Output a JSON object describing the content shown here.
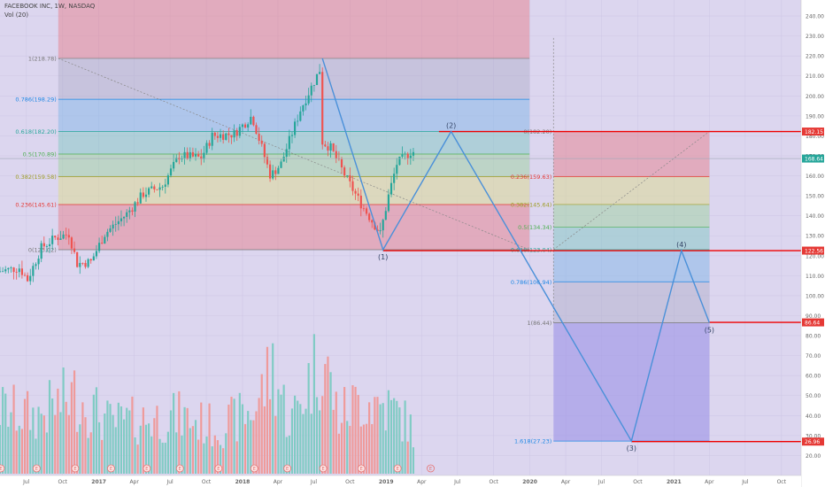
{
  "header": {
    "symbol": "FACEBOOK INC, 1W, NASDAQ",
    "volume": "Vol (20)"
  },
  "chart_data": [
    {
      "type": "candlestick",
      "title": "FACEBOOK INC, 1W, NASDAQ",
      "ylim": [
        10,
        248
      ],
      "y_ticks": [
        20,
        30,
        40,
        50,
        60,
        70,
        80,
        90,
        100,
        110,
        120,
        130,
        140,
        150,
        160,
        170,
        180,
        190,
        200,
        210,
        220,
        230,
        240
      ],
      "y_tick_labels": [
        "20.00",
        "30.00",
        "40.00",
        "50.00",
        "60.00",
        "70.00",
        "80.00",
        "90.00",
        "100.00",
        "110.00",
        "120.00",
        "130.00",
        "140.00",
        "150.00",
        "160.00",
        "170.00",
        "180.00",
        "190.00",
        "200.00",
        "210.00",
        "220.00",
        "230.00",
        "240.00"
      ],
      "x_ticks": [
        {
          "date": "2016-07-01",
          "label": "Jul"
        },
        {
          "date": "2016-10-01",
          "label": "Oct"
        },
        {
          "date": "2017-01-01",
          "label": "2017"
        },
        {
          "date": "2017-04-01",
          "label": "Apr"
        },
        {
          "date": "2017-07-01",
          "label": "Jul"
        },
        {
          "date": "2017-10-01",
          "label": "Oct"
        },
        {
          "date": "2018-01-01",
          "label": "2018"
        },
        {
          "date": "2018-04-01",
          "label": "Apr"
        },
        {
          "date": "2018-07-01",
          "label": "Jul"
        },
        {
          "date": "2018-10-01",
          "label": "Oct"
        },
        {
          "date": "2019-01-01",
          "label": "2019"
        },
        {
          "date": "2019-04-01",
          "label": "Apr"
        },
        {
          "date": "2019-07-01",
          "label": "Jul"
        },
        {
          "date": "2019-10-01",
          "label": "Oct"
        },
        {
          "date": "2020-01-01",
          "label": "2020"
        },
        {
          "date": "2020-04-01",
          "label": "Apr"
        },
        {
          "date": "2020-07-01",
          "label": "Jul"
        },
        {
          "date": "2020-10-01",
          "label": "Oct"
        },
        {
          "date": "2021-01-01",
          "label": "2021"
        },
        {
          "date": "2021-04-01",
          "label": "Apr"
        },
        {
          "date": "2021-07-01",
          "label": "Jul"
        },
        {
          "date": "2021-10-01",
          "label": "Oct"
        }
      ],
      "price_anchors": [
        [
          "2016-04-25",
          112
        ],
        [
          "2016-06-20",
          114
        ],
        [
          "2016-07-11",
          108
        ],
        [
          "2016-08-15",
          124
        ],
        [
          "2016-09-20",
          129
        ],
        [
          "2016-10-24",
          131
        ],
        [
          "2016-11-14",
          116
        ],
        [
          "2016-12-19",
          117
        ],
        [
          "2017-01-23",
          131
        ],
        [
          "2017-03-20",
          141
        ],
        [
          "2017-05-01",
          151
        ],
        [
          "2017-06-19",
          155
        ],
        [
          "2017-07-31",
          170
        ],
        [
          "2017-09-25",
          169
        ],
        [
          "2017-10-23",
          180
        ],
        [
          "2017-12-18",
          181
        ],
        [
          "2018-02-01",
          190
        ],
        [
          "2018-03-20",
          160
        ],
        [
          "2018-04-16",
          166
        ],
        [
          "2018-06-04",
          193
        ],
        [
          "2018-07-23",
          213
        ],
        [
          "2018-07-30",
          177
        ],
        [
          "2018-08-20",
          174
        ],
        [
          "2018-10-01",
          158
        ],
        [
          "2018-11-05",
          146
        ],
        [
          "2018-12-24",
          131
        ],
        [
          "2019-01-14",
          150
        ],
        [
          "2019-02-04",
          166
        ],
        [
          "2019-03-11",
          172
        ]
      ],
      "volume_anchors": [
        [
          "2016-04-25",
          45
        ],
        [
          "2016-07-25",
          40
        ],
        [
          "2016-10-31",
          55
        ],
        [
          "2017-02-01",
          35
        ],
        [
          "2017-05-01",
          38
        ],
        [
          "2017-07-24",
          40
        ],
        [
          "2017-11-01",
          32
        ],
        [
          "2018-02-01",
          45
        ],
        [
          "2018-03-19",
          75
        ],
        [
          "2018-05-01",
          35
        ],
        [
          "2018-07-23",
          85
        ],
        [
          "2018-09-01",
          40
        ],
        [
          "2018-10-29",
          52
        ],
        [
          "2018-12-24",
          48
        ],
        [
          "2019-02-01",
          42
        ],
        [
          "2019-03-11",
          30
        ]
      ],
      "earnings_markers": [
        "2016-04-27",
        "2016-07-27",
        "2016-11-02",
        "2017-02-01",
        "2017-05-03",
        "2017-07-26",
        "2017-11-01",
        "2018-01-31",
        "2018-04-25",
        "2018-07-25",
        "2018-10-30",
        "2019-01-30"
      ],
      "next_earnings": "2019-04-24",
      "fib_retracement_1": {
        "start": "2016-09-20",
        "end": "2019-12-31",
        "zone_top": 248,
        "levels": [
          {
            "ratio": 1,
            "price": 218.78,
            "label": "1(218.78)",
            "color": "#777777"
          },
          {
            "ratio": 0.786,
            "price": 198.29,
            "label": "0.786(198.29)",
            "color": "#1e88e5"
          },
          {
            "ratio": 0.618,
            "price": 182.2,
            "label": "0.618(182.20)",
            "color": "#26a69a"
          },
          {
            "ratio": 0.5,
            "price": 170.89,
            "label": "0.5(170.89)",
            "color": "#4caf50"
          },
          {
            "ratio": 0.382,
            "price": 159.58,
            "label": "0.382(159.58)",
            "color": "#9e9d24"
          },
          {
            "ratio": 0.236,
            "price": 145.61,
            "label": "0.236(145.61)",
            "color": "#e53935"
          },
          {
            "ratio": 0,
            "price": 123.02,
            "label": "0(123.02)",
            "color": "#777777"
          }
        ]
      },
      "fib_retracement_2": {
        "start": "2020-03-01",
        "end": "2021-04-01",
        "levels": [
          {
            "ratio": 0,
            "price": 182.2,
            "label": "0(182.20)",
            "color": "#777777"
          },
          {
            "ratio": 0.236,
            "price": 159.63,
            "label": "0.236(159.63)",
            "color": "#e53935"
          },
          {
            "ratio": 0.382,
            "price": 145.64,
            "label": "0.382(145.64)",
            "color": "#9e9d24"
          },
          {
            "ratio": 0.5,
            "price": 134.34,
            "label": "0.5(134.34)",
            "color": "#4caf50"
          },
          {
            "ratio": 0.618,
            "price": 123.04,
            "label": "0.618(123.04)",
            "color": "#26a69a"
          },
          {
            "ratio": 0.786,
            "price": 106.94,
            "label": "0.786(106.94)",
            "color": "#1e88e5"
          },
          {
            "ratio": 1,
            "price": 86.44,
            "label": "1(86.44)",
            "color": "#777777"
          },
          {
            "ratio": 1.618,
            "price": 27.23,
            "label": "1.618(27.23)",
            "color": "#1e88e5"
          }
        ]
      },
      "wave_path": [
        {
          "date": "2018-07-23",
          "price": 218.78,
          "label": ""
        },
        {
          "date": "2018-12-24",
          "price": 123.02,
          "label": "(1)"
        },
        {
          "date": "2019-06-15",
          "price": 182.2,
          "label": "(2)"
        },
        {
          "date": "2020-09-15",
          "price": 27.23,
          "label": "(3)"
        },
        {
          "date": "2021-01-20",
          "price": 122.56,
          "label": "(4)"
        },
        {
          "date": "2021-04-01",
          "price": 86.44,
          "label": "(5)"
        }
      ],
      "horizontal_lines": [
        {
          "price": 182.15,
          "label": "182.15",
          "from": "2019-05-15"
        },
        {
          "price": 122.56,
          "label": "122.56",
          "from": "2018-12-24"
        },
        {
          "price": 86.64,
          "label": "86.64",
          "from": "2021-04-01"
        },
        {
          "price": 26.96,
          "label": "26.96",
          "from": "2020-09-15"
        }
      ],
      "last_price": {
        "price": 168.64,
        "label": "168.64"
      },
      "colors": {
        "up": "#26a69a",
        "down": "#ef5350",
        "vol_up": "#80cbc4",
        "vol_down": "#ef9a9a",
        "wave": "#4a90d9",
        "hline": "#ee0000",
        "background": "#dcd6ef"
      }
    }
  ]
}
